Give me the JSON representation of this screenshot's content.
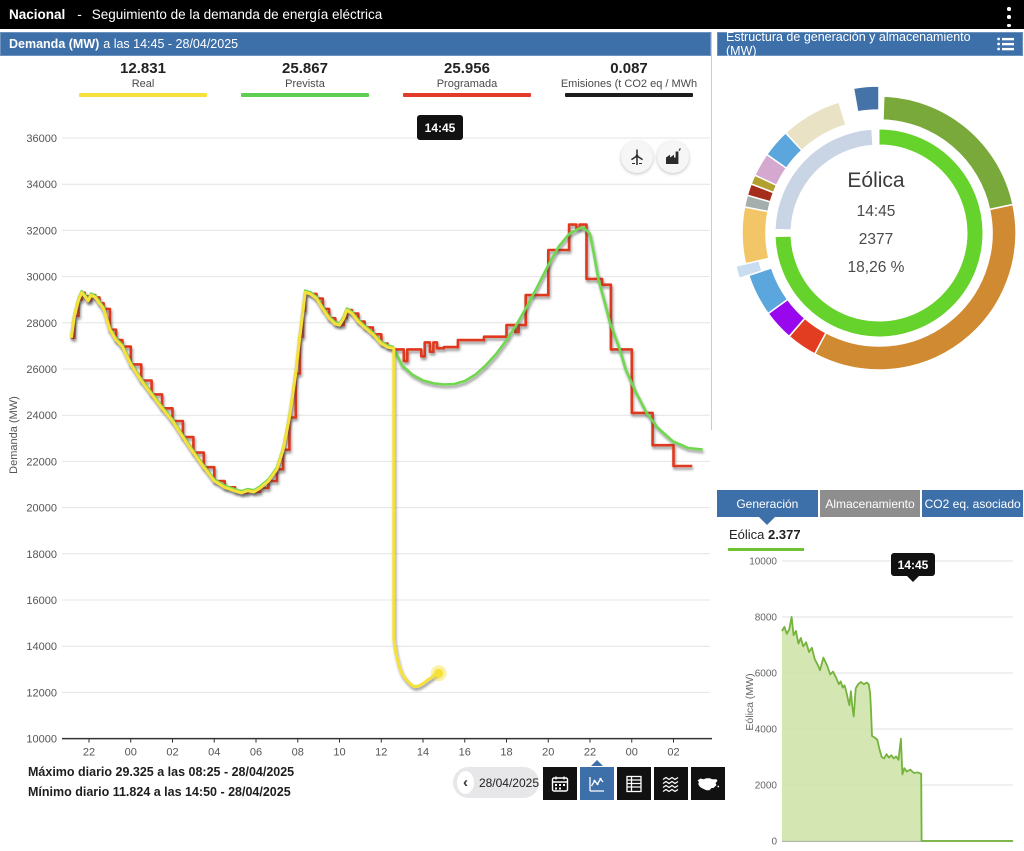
{
  "top_bar": {
    "region": "Nacional",
    "separator": "-",
    "title": "Seguimiento de la demanda de energía eléctrica",
    "menu_icon": "kebab-menu"
  },
  "demand_panel": {
    "header": {
      "title_bold": "Demanda (MW)",
      "title_rest": " a las 14:45 - 28/04/2025"
    },
    "legend": [
      {
        "value": "12.831",
        "label": "Real",
        "color": "#f6e13b"
      },
      {
        "value": "25.867",
        "label": "Prevista",
        "color": "#5fce53"
      },
      {
        "value": "25.956",
        "label": "Programada",
        "color": "#e23b2a"
      },
      {
        "value": "0.087",
        "label": "Emisiones (t CO2 eq / MWh",
        "color": "#1c1c1c"
      }
    ],
    "tooltip": "14:45",
    "overlay_buttons": [
      "wind-turbine",
      "factory"
    ],
    "footer": {
      "max": "Máximo diario 29.325 a las 08:25 - 28/04/2025",
      "min": "Mínimo diario 11.824 a las 14:50 - 28/04/2025"
    },
    "date_nav": {
      "prev_icon": "‹",
      "date": "28/04/2025",
      "buttons": [
        "calendar",
        "line-chart",
        "table",
        "composition",
        "spain-map"
      ],
      "active_button": "line-chart"
    }
  },
  "generation_panel": {
    "header": {
      "title": "Estructura de generación y almacenamiento (MW)",
      "icon": "list-icon"
    },
    "donut_center": {
      "name": "Eólica",
      "time": "14:45",
      "value": "2377",
      "share": "18,26 %"
    },
    "tabs": [
      {
        "label": "Generación",
        "active": true
      },
      {
        "label": "Almacenamiento",
        "active": false
      },
      {
        "label": "CO2 eq. asociado",
        "active": false
      }
    ],
    "selected_series": {
      "name": "Eólica",
      "value": "2.377",
      "underline_color": "#6fc332"
    },
    "tooltip": "14:45"
  },
  "chart_data": [
    {
      "type": "line",
      "title": "Demanda (MW) a las 14:45 - 28/04/2025",
      "ylabel": "Demanda (MW)",
      "ylim": [
        10000,
        36000
      ],
      "yticks": [
        36000,
        34000,
        32000,
        30000,
        28000,
        26000,
        24000,
        22000,
        20000,
        18000,
        16000,
        14000,
        12000,
        10000
      ],
      "x_unit": "hours from 27/04 21:00",
      "xticks": [
        {
          "t": 1,
          "label": "22"
        },
        {
          "t": 3,
          "label": "00"
        },
        {
          "t": 5,
          "label": "02"
        },
        {
          "t": 7,
          "label": "04"
        },
        {
          "t": 9,
          "label": "06"
        },
        {
          "t": 11,
          "label": "08"
        },
        {
          "t": 13,
          "label": "10"
        },
        {
          "t": 15,
          "label": "12"
        },
        {
          "t": 17,
          "label": "14"
        },
        {
          "t": 19,
          "label": "16"
        },
        {
          "t": 21,
          "label": "18"
        },
        {
          "t": 23,
          "label": "20"
        },
        {
          "t": 25,
          "label": "22"
        },
        {
          "t": 27,
          "label": "00"
        },
        {
          "t": 29,
          "label": "02"
        }
      ],
      "series": [
        {
          "name": "common_shape",
          "color": null,
          "points": [
            [
              0.15,
              27350
            ],
            [
              0.3,
              28300
            ],
            [
              0.5,
              29000
            ],
            [
              0.65,
              29300
            ],
            [
              0.8,
              29150
            ],
            [
              0.95,
              28950
            ],
            [
              1.1,
              29200
            ],
            [
              1.3,
              29100
            ],
            [
              1.5,
              28850
            ],
            [
              1.7,
              28600
            ],
            [
              2.0,
              27700
            ],
            [
              2.3,
              27250
            ],
            [
              2.6,
              26970
            ],
            [
              3.0,
              26200
            ],
            [
              3.5,
              25500
            ],
            [
              4.0,
              24900
            ],
            [
              4.5,
              24300
            ],
            [
              5.0,
              23750
            ],
            [
              5.5,
              23050
            ],
            [
              6.0,
              22380
            ],
            [
              6.5,
              21750
            ],
            [
              7.0,
              21150
            ],
            [
              7.5,
              20880
            ],
            [
              8.0,
              20720
            ],
            [
              8.3,
              20640
            ],
            [
              8.6,
              20730
            ],
            [
              8.9,
              20680
            ],
            [
              9.2,
              20850
            ],
            [
              9.6,
              21150
            ],
            [
              10.0,
              21660
            ],
            [
              10.3,
              22500
            ],
            [
              10.6,
              23900
            ],
            [
              10.9,
              25800
            ],
            [
              11.1,
              27400
            ],
            [
              11.25,
              28500
            ],
            [
              11.35,
              29325
            ],
            [
              11.6,
              29250
            ],
            [
              11.9,
              29050
            ],
            [
              12.2,
              28600
            ],
            [
              12.5,
              28200
            ],
            [
              12.8,
              27950
            ],
            [
              13.0,
              27900
            ],
            [
              13.2,
              28200
            ],
            [
              13.35,
              28550
            ],
            [
              13.6,
              28400
            ],
            [
              13.9,
              28050
            ],
            [
              14.2,
              27800
            ],
            [
              14.6,
              27500
            ],
            [
              15.0,
              27100
            ],
            [
              15.3,
              26950
            ],
            [
              15.55,
              26900
            ]
          ]
        },
        {
          "name": "Real",
          "color": "#f6e13b",
          "points": [
            [
              15.6,
              26900
            ],
            [
              15.6,
              14300
            ],
            [
              15.7,
              13700
            ],
            [
              15.85,
              13150
            ],
            [
              16.0,
              12800
            ],
            [
              16.2,
              12550
            ],
            [
              16.45,
              12320
            ],
            [
              16.6,
              12250
            ],
            [
              16.8,
              12280
            ],
            [
              17.0,
              12380
            ],
            [
              17.2,
              12520
            ],
            [
              17.4,
              12640
            ],
            [
              17.6,
              12790
            ],
            [
              17.75,
              12831
            ]
          ],
          "end_marker": {
            "t": 17.75,
            "value": 12831
          }
        },
        {
          "name": "Prevista",
          "color": "#6fd84f",
          "points": [
            [
              16.0,
              26150
            ],
            [
              16.5,
              25750
            ],
            [
              17.0,
              25500
            ],
            [
              17.5,
              25380
            ],
            [
              18.0,
              25330
            ],
            [
              18.5,
              25350
            ],
            [
              19.0,
              25480
            ],
            [
              19.5,
              25750
            ],
            [
              20.0,
              26150
            ],
            [
              20.5,
              26650
            ],
            [
              21.0,
              27250
            ],
            [
              21.5,
              27950
            ],
            [
              22.0,
              28750
            ],
            [
              22.5,
              29600
            ],
            [
              23.0,
              30500
            ],
            [
              23.5,
              31300
            ],
            [
              24.0,
              31850
            ],
            [
              24.5,
              32100
            ],
            [
              24.7,
              32120
            ],
            [
              25.0,
              31850
            ],
            [
              25.2,
              30900
            ],
            [
              25.4,
              29900
            ],
            [
              25.7,
              28900
            ],
            [
              25.96,
              28000
            ],
            [
              26.43,
              26830
            ],
            [
              26.7,
              26000
            ],
            [
              27.16,
              25060
            ],
            [
              27.71,
              24100
            ],
            [
              28.25,
              23450
            ],
            [
              28.97,
              22870
            ],
            [
              29.7,
              22580
            ],
            [
              30.4,
              22510
            ]
          ]
        },
        {
          "name": "Programada",
          "color": "#e0391f",
          "step": true,
          "points": [
            [
              15.58,
              26850
            ],
            [
              16.08,
              26350
            ],
            [
              16.25,
              26850
            ],
            [
              16.92,
              26550
            ],
            [
              17.08,
              27150
            ],
            [
              17.33,
              26750
            ],
            [
              17.5,
              27150
            ],
            [
              17.67,
              26900
            ],
            [
              18.0,
              26950
            ],
            [
              18.67,
              27250
            ],
            [
              19.92,
              27400
            ],
            [
              21.0,
              27900
            ],
            [
              21.42,
              27600
            ],
            [
              21.58,
              27900
            ],
            [
              21.92,
              29200
            ],
            [
              23.0,
              31150
            ],
            [
              24.0,
              32250
            ],
            [
              24.35,
              32100
            ],
            [
              24.5,
              32250
            ],
            [
              24.83,
              29900
            ],
            [
              25.58,
              29650
            ],
            [
              26.0,
              26850
            ],
            [
              27.0,
              24100
            ],
            [
              28.0,
              22700
            ],
            [
              29.0,
              21800
            ],
            [
              29.9,
              21800
            ]
          ]
        }
      ],
      "annotations": {
        "cursor_time": "14:45"
      }
    },
    {
      "type": "area",
      "title": "Eólica",
      "ylabel": "Eólica (MW)",
      "ylim": [
        0,
        10000
      ],
      "yticks": [
        10000,
        8000,
        6000,
        4000,
        2000,
        0
      ],
      "x_unit": "hours from 28/04 00:00",
      "xrange": [
        0,
        24
      ],
      "line_color": "#74b33c",
      "fill_color": "#cfe3aa",
      "points": [
        [
          0,
          7500
        ],
        [
          0.25,
          7650
        ],
        [
          0.5,
          7400
        ],
        [
          0.75,
          7550
        ],
        [
          1.0,
          8000
        ],
        [
          1.2,
          7350
        ],
        [
          1.45,
          7500
        ],
        [
          1.7,
          7050
        ],
        [
          1.95,
          7250
        ],
        [
          2.2,
          6950
        ],
        [
          2.5,
          7100
        ],
        [
          2.8,
          6750
        ],
        [
          3.1,
          6900
        ],
        [
          3.4,
          6500
        ],
        [
          3.7,
          6300
        ],
        [
          3.95,
          6100
        ],
        [
          4.3,
          6550
        ],
        [
          4.7,
          6250
        ],
        [
          5.0,
          5950
        ],
        [
          5.3,
          6050
        ],
        [
          5.6,
          5850
        ],
        [
          5.9,
          5600
        ],
        [
          6.1,
          5700
        ],
        [
          6.3,
          5480
        ],
        [
          6.5,
          5560
        ],
        [
          6.7,
          5300
        ],
        [
          6.85,
          5050
        ],
        [
          7.0,
          4850
        ],
        [
          7.15,
          5350
        ],
        [
          7.3,
          4800
        ],
        [
          7.45,
          4450
        ],
        [
          7.65,
          5450
        ],
        [
          7.9,
          5600
        ],
        [
          8.2,
          5680
        ],
        [
          8.5,
          5600
        ],
        [
          8.8,
          5660
        ],
        [
          9.0,
          5600
        ],
        [
          9.15,
          5300
        ],
        [
          9.25,
          4600
        ],
        [
          9.35,
          3750
        ],
        [
          9.6,
          3700
        ],
        [
          9.9,
          3620
        ],
        [
          10.1,
          3300
        ],
        [
          10.35,
          3000
        ],
        [
          10.6,
          2950
        ],
        [
          10.85,
          3100
        ],
        [
          11.1,
          2980
        ],
        [
          11.35,
          3060
        ],
        [
          11.6,
          2950
        ],
        [
          11.85,
          3020
        ],
        [
          12.1,
          2900
        ],
        [
          12.35,
          3650
        ],
        [
          12.5,
          2380
        ],
        [
          12.7,
          2600
        ],
        [
          12.95,
          2480
        ],
        [
          13.3,
          2550
        ],
        [
          13.7,
          2430
        ],
        [
          14.1,
          2450
        ],
        [
          14.45,
          2400
        ],
        [
          14.5,
          0
        ],
        [
          24,
          0
        ]
      ],
      "annotations": {
        "cursor_time": "14:45"
      }
    },
    {
      "type": "donut",
      "center_labels": {
        "name": "Eólica",
        "time": "14:45",
        "value": "2377",
        "share": "18,26 %"
      },
      "outer_segments": [
        {
          "from": 350,
          "to": 360,
          "color": "#4572a7",
          "exploded": true
        },
        {
          "from": 2,
          "to": 78,
          "color": "#79a93a"
        },
        {
          "from": 78,
          "to": 208,
          "color": "#d08a31"
        },
        {
          "from": 208,
          "to": 221,
          "color": "#e23d20"
        },
        {
          "from": 221,
          "to": 234,
          "color": "#9907ef"
        },
        {
          "from": 234,
          "to": 252,
          "color": "#5ba6dc"
        },
        {
          "from": 252,
          "to": 257,
          "color": "#c8ddf0",
          "exploded": true
        },
        {
          "from": 257,
          "to": 281,
          "color": "#f2c567"
        },
        {
          "from": 281,
          "to": 286,
          "color": "#a4aeac"
        },
        {
          "from": 286,
          "to": 291,
          "color": "#a52d1c"
        },
        {
          "from": 291,
          "to": 295,
          "color": "#b2a02f"
        },
        {
          "from": 295,
          "to": 305,
          "color": "#d5a8cf"
        },
        {
          "from": 305,
          "to": 317,
          "color": "#5ba6dc"
        },
        {
          "from": 317,
          "to": 343,
          "color": "#e9e2c4"
        }
      ],
      "inner_segments": [
        {
          "from": 0,
          "to": 268,
          "color": "#66d22c"
        },
        {
          "from": 272,
          "to": 356,
          "color": "#c9d4e4"
        }
      ]
    }
  ]
}
